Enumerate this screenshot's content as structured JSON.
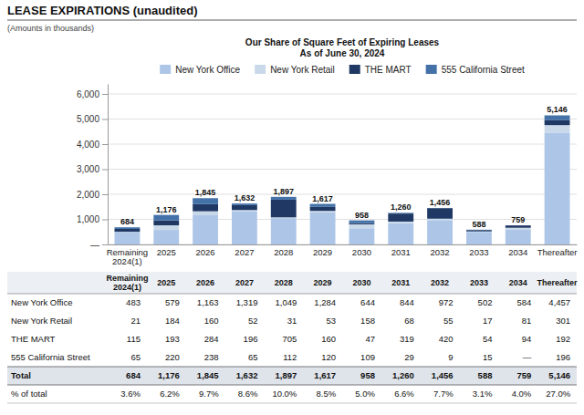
{
  "chart_data": {
    "type": "bar",
    "stacked": true,
    "title": "LEASE EXPIRATIONS (unaudited)",
    "subtitle": "(Amounts in thousands)",
    "annotations": [
      "Our Share of Square Feet of Expiring Leases",
      "As of June 30, 2024"
    ],
    "categories": [
      "Remaining\n2024(1)",
      "2025",
      "2026",
      "2027",
      "2028",
      "2029",
      "2030",
      "2031",
      "2032",
      "2033",
      "2034",
      "Thereafter"
    ],
    "series": [
      {
        "name": "New York Office",
        "color": "#adc6e8",
        "values": [
          483,
          579,
          1163,
          1319,
          1049,
          1284,
          644,
          844,
          972,
          502,
          584,
          4457
        ],
        "value_labels": [
          "483",
          "579",
          "1,163",
          "1,319",
          "1,049",
          "1,284",
          "644",
          "844",
          "972",
          "502",
          "584",
          "4,457"
        ]
      },
      {
        "name": "New York Retail",
        "color": "#c9d9ea",
        "values": [
          21,
          184,
          160,
          52,
          31,
          53,
          158,
          68,
          55,
          17,
          81,
          301
        ],
        "value_labels": [
          "21",
          "184",
          "160",
          "52",
          "31",
          "53",
          "158",
          "68",
          "55",
          "17",
          "81",
          "301"
        ]
      },
      {
        "name": "THE MART",
        "color": "#1f3864",
        "values": [
          115,
          193,
          284,
          196,
          705,
          160,
          47,
          319,
          420,
          54,
          94,
          192
        ],
        "value_labels": [
          "115",
          "193",
          "284",
          "196",
          "705",
          "160",
          "47",
          "319",
          "420",
          "54",
          "94",
          "192"
        ]
      },
      {
        "name": "555 California Street",
        "color": "#4472a8",
        "values": [
          65,
          220,
          238,
          65,
          112,
          120,
          109,
          29,
          9,
          15,
          0,
          196
        ],
        "value_labels": [
          "65",
          "220",
          "238",
          "65",
          "112",
          "120",
          "109",
          "29",
          "9",
          "15",
          "—",
          "196"
        ]
      }
    ],
    "totals": {
      "name": "Total",
      "values": [
        684,
        1176,
        1845,
        1632,
        1897,
        1617,
        958,
        1260,
        1456,
        588,
        759,
        5146
      ],
      "value_labels": [
        "684",
        "1,176",
        "1,845",
        "1,632",
        "1,897",
        "1,617",
        "958",
        "1,260",
        "1,456",
        "588",
        "759",
        "5,146"
      ]
    },
    "shares": {
      "name": "% of total",
      "values": [
        3.6,
        6.2,
        9.7,
        8.6,
        10.0,
        8.5,
        5.0,
        6.6,
        7.7,
        3.1,
        4.0,
        27.0
      ],
      "value_labels": [
        "3.6%",
        "6.2%",
        "9.7%",
        "8.6%",
        "10.0%",
        "8.5%",
        "5.0%",
        "6.6%",
        "7.7%",
        "3.1%",
        "4.0%",
        "27.0%"
      ]
    },
    "ylim": [
      0,
      6400
    ],
    "yticks": [
      {
        "value": 0,
        "label": "—"
      },
      {
        "value": 1000,
        "label": "1,000"
      },
      {
        "value": 2000,
        "label": "2,000"
      },
      {
        "value": 3000,
        "label": "3,000"
      },
      {
        "value": 4000,
        "label": "4,000"
      },
      {
        "value": 5000,
        "label": "5,000"
      },
      {
        "value": 6000,
        "label": "6,000"
      }
    ],
    "grid": true,
    "legend": "top"
  }
}
